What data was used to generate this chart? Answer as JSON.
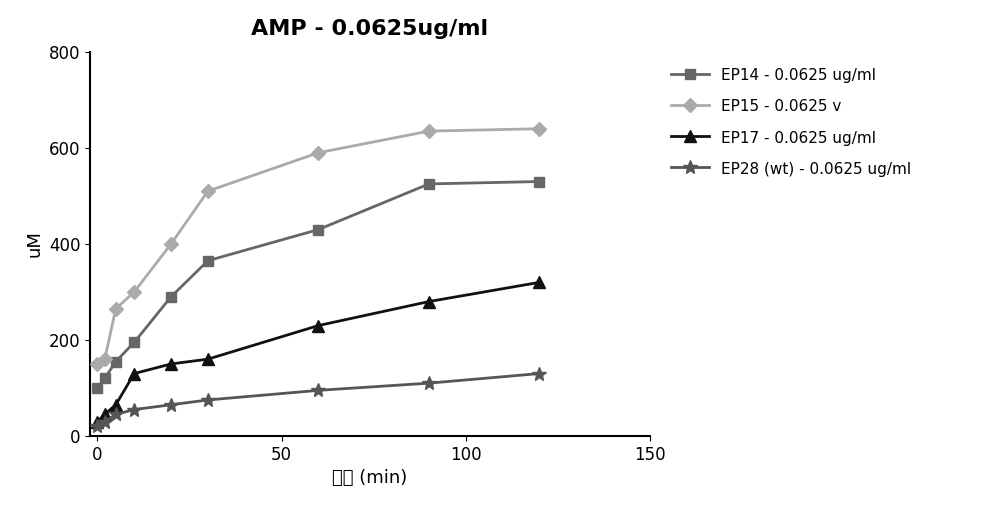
{
  "title": "AMP - 0.0625ug/ml",
  "xlabel": "时间 (min)",
  "ylabel": "uM",
  "xlim": [
    -2,
    150
  ],
  "ylim": [
    0,
    800
  ],
  "xticks": [
    0,
    50,
    100,
    150
  ],
  "yticks": [
    0,
    200,
    400,
    600,
    800
  ],
  "series": [
    {
      "label": "EP14 - 0.0625 ug/ml",
      "x": [
        0,
        2,
        5,
        10,
        20,
        30,
        60,
        90,
        120
      ],
      "y": [
        100,
        120,
        155,
        195,
        290,
        365,
        430,
        525,
        530
      ],
      "color": "#666666",
      "marker": "s",
      "markersize": 7,
      "linewidth": 2.0,
      "zorder": 3
    },
    {
      "label": "EP15 - 0.0625 v",
      "x": [
        0,
        2,
        5,
        10,
        20,
        30,
        60,
        90,
        120
      ],
      "y": [
        150,
        160,
        265,
        300,
        400,
        510,
        590,
        635,
        640
      ],
      "color": "#aaaaaa",
      "marker": "D",
      "markersize": 7,
      "linewidth": 2.0,
      "zorder": 3
    },
    {
      "label": "EP17 - 0.0625 ug/ml",
      "x": [
        0,
        2,
        5,
        10,
        20,
        30,
        60,
        90,
        120
      ],
      "y": [
        30,
        45,
        65,
        130,
        150,
        160,
        230,
        280,
        320
      ],
      "color": "#111111",
      "marker": "^",
      "markersize": 9,
      "linewidth": 2.0,
      "zorder": 3
    },
    {
      "label": "EP28 (wt) - 0.0625 ug/ml",
      "x": [
        0,
        2,
        5,
        10,
        20,
        30,
        60,
        90,
        120
      ],
      "y": [
        20,
        30,
        45,
        55,
        65,
        75,
        95,
        110,
        130
      ],
      "color": "#555555",
      "marker": "*",
      "markersize": 10,
      "linewidth": 2.0,
      "zorder": 3
    }
  ],
  "title_fontsize": 16,
  "axis_label_fontsize": 13,
  "tick_fontsize": 12,
  "legend_fontsize": 11,
  "background_color": "#ffffff"
}
